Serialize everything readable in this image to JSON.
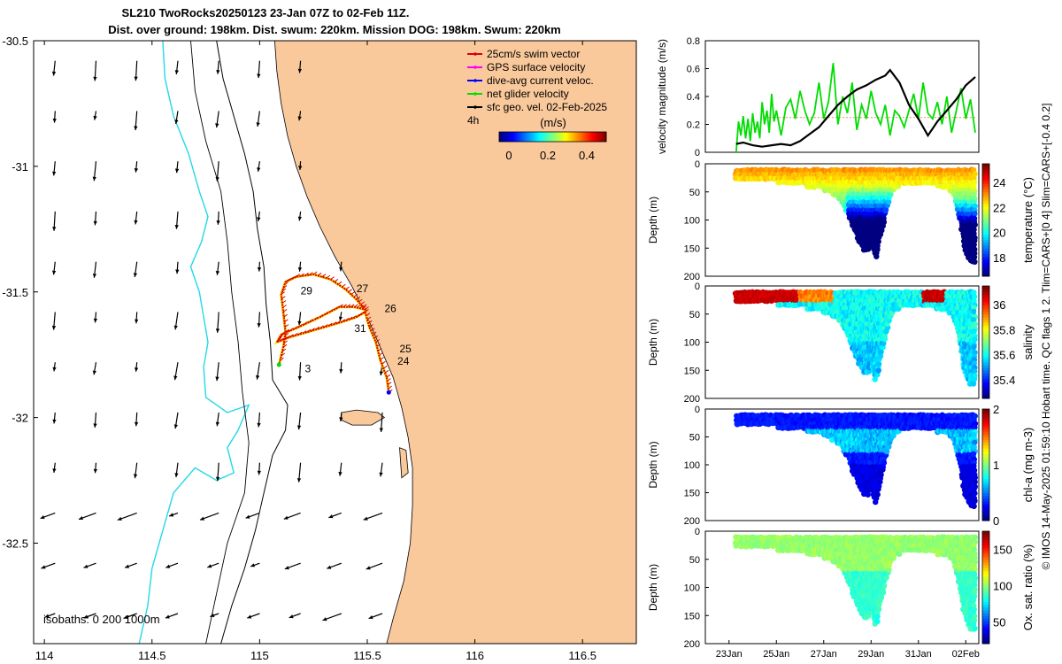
{
  "figure": {
    "title_line1": "SL210 TwoRocks20250123 23-Jan 07Z to 02-Feb 11Z.",
    "title_line2": "Dist. over ground: 198km. Dist. swum: 220km. Mission DOG: 198km. Swum: 220km",
    "side_caption": "© IMOS 14-May-2025 01:59:10 Hobart time. QC flags 1 2. Tlim=CARS+[0 4] Slim=CARS+[-0.4 0.2]"
  },
  "chart_data": [
    {
      "type": "map",
      "name": "glider-track-map",
      "xlim": [
        113.95,
        116.75
      ],
      "ylim": [
        -32.9,
        -30.5
      ],
      "x_ticks": [
        114,
        114.5,
        115,
        115.5,
        116,
        116.5
      ],
      "x_tick_labels": [
        "114",
        "114.5",
        "115",
        "115.5",
        "116",
        "116.5"
      ],
      "y_ticks": [
        -30.5,
        -31,
        -31.5,
        -32,
        -32.5
      ],
      "y_tick_labels": [
        "-30.5",
        "-31",
        "-31.5",
        "-32",
        "-32.5"
      ],
      "legend": [
        {
          "label": "25cm/s swim vector",
          "color": "#e00000"
        },
        {
          "label": "GPS surface velocity",
          "color": "#ff00ff"
        },
        {
          "label": "dive-avg current veloc.",
          "color": "#0000ff"
        },
        {
          "label": "net glider velocity",
          "color": "#00dd00"
        },
        {
          "label": "sfc geo. vel. 02-Feb-2025",
          "color": "#000000"
        }
      ],
      "legend_note": "4h",
      "colorbar": {
        "label": "(m/s)",
        "range": [
          -0.05,
          0.5
        ],
        "ticks": [
          0,
          0.2,
          0.4
        ],
        "tick_labels": [
          "0",
          "0.2",
          "0.4"
        ]
      },
      "isobath_label": "isobaths: 0   200  1000m",
      "land_color": "#f9c89b",
      "isobath_1000m_color": "#22d8e8",
      "track": [
        [
          115.6,
          -31.9
        ],
        [
          115.59,
          -31.84
        ],
        [
          115.56,
          -31.77
        ],
        [
          115.54,
          -31.7
        ],
        [
          115.51,
          -31.64
        ],
        [
          115.49,
          -31.58
        ],
        [
          115.45,
          -31.6
        ],
        [
          115.38,
          -31.62
        ],
        [
          115.3,
          -31.64
        ],
        [
          115.22,
          -31.66
        ],
        [
          115.14,
          -31.68
        ],
        [
          115.08,
          -31.7
        ],
        [
          115.1,
          -31.67
        ],
        [
          115.18,
          -31.64
        ],
        [
          115.28,
          -31.6
        ],
        [
          115.37,
          -31.56
        ],
        [
          115.44,
          -31.56
        ],
        [
          115.49,
          -31.57
        ],
        [
          115.45,
          -31.53
        ],
        [
          115.4,
          -31.49
        ],
        [
          115.33,
          -31.45
        ],
        [
          115.25,
          -31.43
        ],
        [
          115.17,
          -31.44
        ],
        [
          115.12,
          -31.46
        ],
        [
          115.1,
          -31.51
        ],
        [
          115.11,
          -31.58
        ],
        [
          115.12,
          -31.66
        ],
        [
          115.11,
          -31.72
        ],
        [
          115.09,
          -31.79
        ]
      ],
      "day_labels": [
        {
          "label": "29",
          "lon": 115.19,
          "lat": -31.51
        },
        {
          "label": "27",
          "lon": 115.45,
          "lat": -31.5
        },
        {
          "label": "26",
          "lon": 115.58,
          "lat": -31.58
        },
        {
          "label": "31",
          "lon": 115.44,
          "lat": -31.66
        },
        {
          "label": "25",
          "lon": 115.65,
          "lat": -31.74
        },
        {
          "label": "24",
          "lon": 115.64,
          "lat": -31.79
        },
        {
          "label": "3",
          "lon": 115.21,
          "lat": -31.82
        }
      ]
    },
    {
      "type": "line",
      "name": "velocity-magnitude-panel",
      "ylabel": "velocity magnitude (m/s)",
      "ylim": [
        0,
        0.8
      ],
      "y_ticks": [
        0,
        0.2,
        0.4,
        0.6,
        0.8
      ],
      "y_tick_labels": [
        "0",
        "0.2",
        "0.4",
        "0.6",
        "0.8"
      ],
      "xlim": [
        22.0,
        33.55
      ],
      "series": [
        {
          "name": "swim speed",
          "color": "#00dd00",
          "x": [
            23.3,
            23.4,
            23.5,
            23.6,
            23.7,
            23.8,
            23.9,
            24.0,
            24.1,
            24.2,
            24.3,
            24.4,
            24.5,
            24.6,
            24.7,
            24.8,
            24.9,
            25.0,
            25.2,
            25.4,
            25.6,
            25.8,
            26.0,
            26.2,
            26.4,
            26.6,
            26.8,
            27.0,
            27.2,
            27.4,
            27.6,
            27.8,
            28.0,
            28.2,
            28.4,
            28.6,
            28.8,
            29.0,
            29.2,
            29.4,
            29.6,
            29.8,
            30.0,
            30.2,
            30.4,
            30.6,
            30.8,
            31.0,
            31.2,
            31.4,
            31.6,
            31.8,
            32.0,
            32.2,
            32.4,
            32.6,
            32.8,
            33.0,
            33.2,
            33.4
          ],
          "values": [
            0.0,
            0.22,
            0.12,
            0.26,
            0.1,
            0.24,
            0.08,
            0.28,
            0.14,
            0.22,
            0.1,
            0.36,
            0.2,
            0.3,
            0.14,
            0.42,
            0.22,
            0.3,
            0.12,
            0.32,
            0.38,
            0.24,
            0.44,
            0.3,
            0.2,
            0.28,
            0.5,
            0.24,
            0.36,
            0.64,
            0.2,
            0.4,
            0.28,
            0.5,
            0.16,
            0.34,
            0.24,
            0.44,
            0.28,
            0.2,
            0.34,
            0.12,
            0.3,
            0.26,
            0.18,
            0.3,
            0.42,
            0.24,
            0.5,
            0.28,
            0.24,
            0.36,
            0.2,
            0.4,
            0.14,
            0.3,
            0.46,
            0.24,
            0.38,
            0.14
          ]
        },
        {
          "name": "current speed",
          "color": "#000000",
          "x": [
            23.3,
            23.6,
            24.0,
            24.4,
            24.8,
            25.2,
            25.6,
            26.0,
            26.4,
            26.8,
            27.2,
            27.6,
            28.0,
            28.4,
            28.8,
            29.2,
            29.6,
            29.8,
            30.2,
            30.6,
            31.0,
            31.4,
            31.8,
            32.2,
            32.6,
            33.0,
            33.4
          ],
          "values": [
            0.06,
            0.07,
            0.05,
            0.04,
            0.05,
            0.06,
            0.05,
            0.08,
            0.13,
            0.18,
            0.26,
            0.34,
            0.4,
            0.45,
            0.48,
            0.52,
            0.55,
            0.59,
            0.5,
            0.34,
            0.24,
            0.12,
            0.22,
            0.3,
            0.38,
            0.48,
            0.54
          ]
        }
      ]
    },
    {
      "type": "scatter",
      "name": "temperature-section",
      "ylabel": "Depth (m)",
      "ylim": [
        200,
        0
      ],
      "y_ticks": [
        0,
        50,
        100,
        150,
        200
      ],
      "y_tick_labels": [
        "0",
        "50",
        "100",
        "150",
        "200"
      ],
      "colorbar": {
        "label": "temperature (°C)",
        "range": [
          16.5,
          25.5
        ],
        "ticks": [
          18,
          20,
          22,
          24
        ],
        "tick_labels": [
          "18",
          "20",
          "22",
          "24"
        ]
      },
      "profile_days": [
        23.3,
        23.6,
        23.9,
        24.2,
        24.5,
        24.8,
        25.1,
        25.4,
        25.7,
        26.0,
        26.3,
        26.6,
        26.9,
        27.2,
        27.5,
        27.8,
        28.0,
        28.3,
        28.5,
        28.7,
        28.9,
        29.0,
        29.1,
        29.2,
        29.4,
        29.6,
        29.8,
        30.0,
        30.3,
        30.6,
        30.9,
        31.2,
        31.5,
        31.8,
        32.1,
        32.4,
        32.6,
        32.8,
        33.0,
        33.2,
        33.4
      ],
      "profile_max_depth_m": [
        20,
        20,
        22,
        22,
        24,
        24,
        25,
        26,
        28,
        30,
        32,
        35,
        38,
        42,
        50,
        60,
        80,
        110,
        130,
        145,
        145,
        125,
        140,
        160,
        120,
        80,
        50,
        35,
        30,
        30,
        30,
        30,
        30,
        32,
        35,
        40,
        60,
        100,
        150,
        165,
        170
      ],
      "colormap": "jet"
    },
    {
      "type": "scatter",
      "name": "salinity-section",
      "ylabel": "Depth (m)",
      "ylim": [
        200,
        0
      ],
      "y_ticks": [
        0,
        50,
        100,
        150,
        200
      ],
      "y_tick_labels": [
        "0",
        "50",
        "100",
        "150",
        "200"
      ],
      "colorbar": {
        "label": "salinity",
        "range": [
          35.25,
          36.15
        ],
        "ticks": [
          35.4,
          35.6,
          35.8,
          36
        ],
        "tick_labels": [
          "35.4",
          "35.6",
          "35.8",
          "36"
        ]
      },
      "colormap": "jet"
    },
    {
      "type": "scatter",
      "name": "chlorophyll-section",
      "ylabel": "Depth (m)",
      "ylim": [
        200,
        0
      ],
      "y_ticks": [
        0,
        50,
        100,
        150,
        200
      ],
      "y_tick_labels": [
        "0",
        "50",
        "100",
        "150",
        "200"
      ],
      "colorbar": {
        "label": "chl-a (mg m-3)",
        "range": [
          0,
          2
        ],
        "ticks": [
          0,
          1,
          2
        ],
        "tick_labels": [
          "0",
          "1",
          "2"
        ]
      },
      "colormap": "jet"
    },
    {
      "type": "scatter",
      "name": "oxygen-section",
      "ylabel": "Depth (m)",
      "ylim": [
        200,
        0
      ],
      "y_ticks": [
        0,
        50,
        100,
        150,
        200
      ],
      "y_tick_labels": [
        "0",
        "50",
        "100",
        "150",
        "200"
      ],
      "colorbar": {
        "label": "Ox. sat. ratio (%)",
        "range": [
          20,
          175
        ],
        "ticks": [
          50,
          100,
          150
        ],
        "tick_labels": [
          "50",
          "100",
          "150"
        ]
      },
      "colormap": "jet",
      "x_ticks": [
        23,
        25,
        27,
        29,
        31,
        33
      ],
      "x_tick_labels": [
        "23Jan",
        "25Jan",
        "27Jan",
        "29Jan",
        "31Jan",
        "02Feb"
      ]
    }
  ]
}
